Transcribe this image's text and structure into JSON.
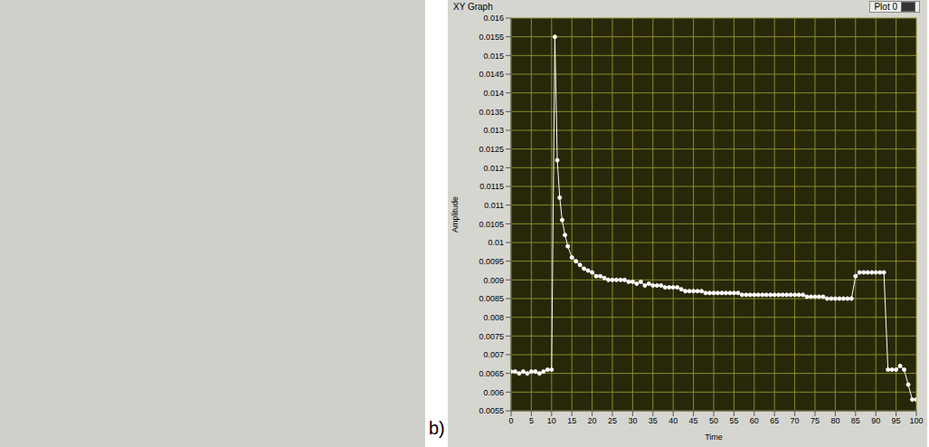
{
  "chart_data": {
    "type": "line",
    "title": "XY Graph",
    "panel_label": "b)",
    "x_label": "Time",
    "y_label": "Amplitude",
    "legend": "top-right",
    "grid": true,
    "xlim": [
      0,
      100
    ],
    "xticks": [
      0,
      5,
      10,
      15,
      20,
      25,
      30,
      35,
      40,
      45,
      50,
      55,
      60,
      65,
      70,
      75,
      80,
      85,
      90,
      95,
      100
    ],
    "ylim": [
      0.0055,
      0.016
    ],
    "yticks": [
      0.0055,
      0.006,
      0.0065,
      0.007,
      0.0075,
      0.008,
      0.0085,
      0.009,
      0.0095,
      0.01,
      0.0105,
      0.011,
      0.0115,
      0.012,
      0.0125,
      0.013,
      0.0135,
      0.014,
      0.0145,
      0.015,
      0.0155,
      0.016
    ],
    "x": [
      0,
      1,
      2,
      3,
      4,
      5,
      6,
      7,
      8,
      9,
      10,
      10.8,
      11.4,
      12,
      12.6,
      13.3,
      14,
      15,
      16,
      17,
      18,
      19,
      20,
      21,
      22,
      23,
      24,
      25,
      26,
      27,
      28,
      29,
      30,
      31,
      32,
      33,
      34,
      35,
      36,
      37,
      38,
      39,
      40,
      41,
      42,
      43,
      44,
      45,
      46,
      47,
      48,
      49,
      50,
      51,
      52,
      53,
      54,
      55,
      56,
      57,
      58,
      59,
      60,
      61,
      62,
      63,
      64,
      65,
      66,
      67,
      68,
      69,
      70,
      71,
      72,
      73,
      74,
      75,
      76,
      77,
      78,
      79,
      80,
      81,
      82,
      83,
      84,
      85,
      86,
      87,
      88,
      89,
      90,
      91,
      92,
      93,
      94,
      95,
      96,
      97,
      98,
      99,
      100
    ],
    "series": [
      {
        "name": "Plot 0",
        "color": "#ffffff",
        "marker": "circle",
        "line_style": "solid",
        "values": [
          0.00655,
          0.00655,
          0.0065,
          0.00655,
          0.0065,
          0.00655,
          0.00655,
          0.0065,
          0.00655,
          0.0066,
          0.0066,
          0.0155,
          0.0122,
          0.0112,
          0.0106,
          0.0102,
          0.0099,
          0.0096,
          0.0095,
          0.0094,
          0.0093,
          0.00925,
          0.0092,
          0.0091,
          0.0091,
          0.00905,
          0.009,
          0.009,
          0.009,
          0.009,
          0.009,
          0.00895,
          0.00895,
          0.0089,
          0.00895,
          0.00885,
          0.0089,
          0.00885,
          0.00885,
          0.00885,
          0.0088,
          0.0088,
          0.0088,
          0.0088,
          0.00875,
          0.0087,
          0.0087,
          0.0087,
          0.0087,
          0.0087,
          0.00865,
          0.00865,
          0.00865,
          0.00865,
          0.00865,
          0.00865,
          0.00865,
          0.00865,
          0.00865,
          0.0086,
          0.0086,
          0.0086,
          0.0086,
          0.0086,
          0.0086,
          0.0086,
          0.0086,
          0.0086,
          0.0086,
          0.0086,
          0.0086,
          0.0086,
          0.0086,
          0.0086,
          0.0086,
          0.00855,
          0.00855,
          0.00855,
          0.00855,
          0.00855,
          0.0085,
          0.0085,
          0.0085,
          0.0085,
          0.0085,
          0.0085,
          0.0085,
          0.0091,
          0.0092,
          0.0092,
          0.0092,
          0.0092,
          0.0092,
          0.0092,
          0.0092,
          0.0066,
          0.0066,
          0.0066,
          0.0067,
          0.0066,
          0.0062,
          0.0058,
          0.0058
        ]
      }
    ]
  }
}
